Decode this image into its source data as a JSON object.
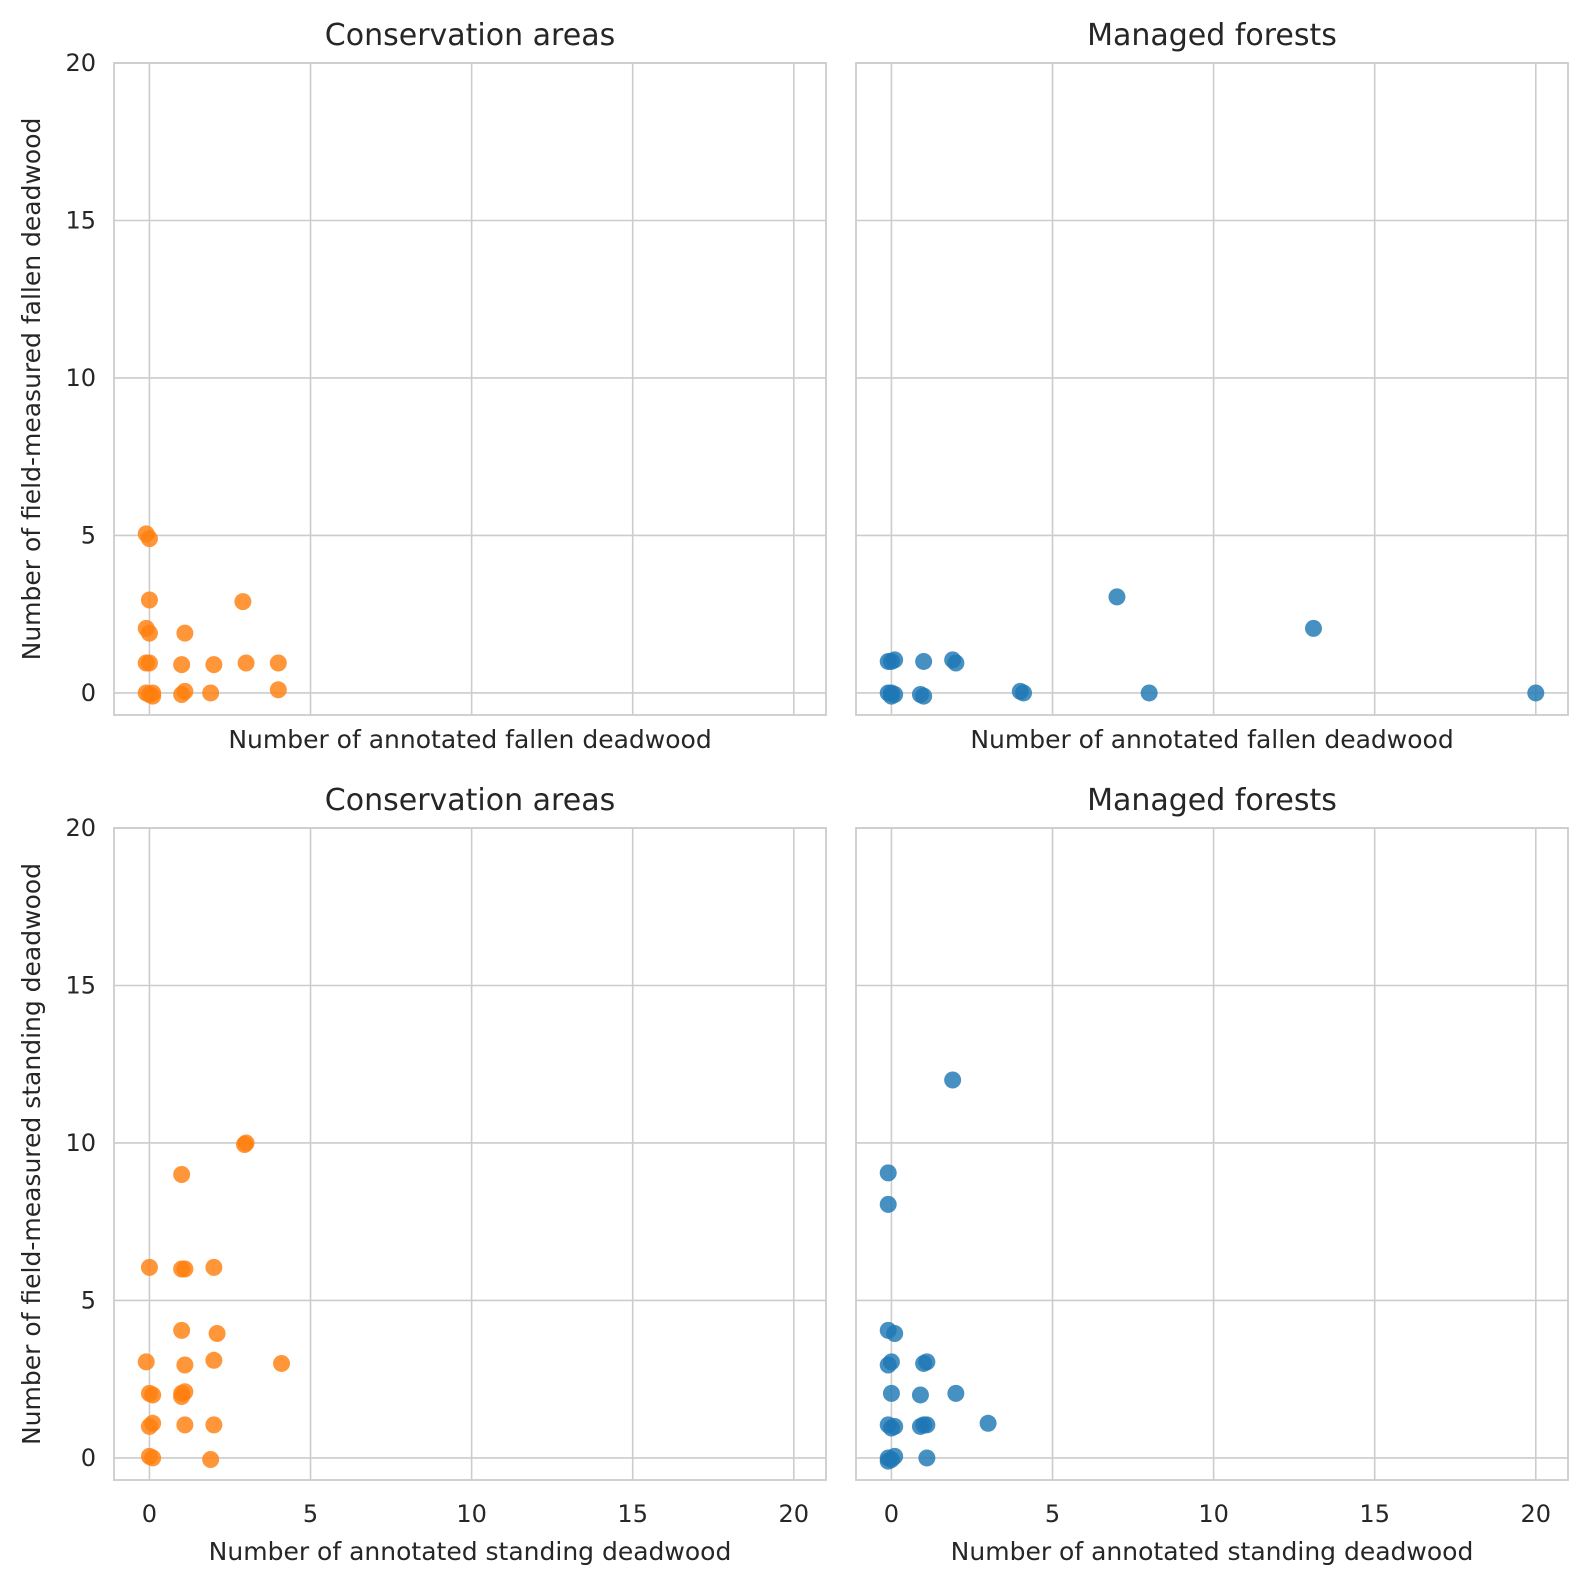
{
  "colors": {
    "conservation": "#ff7f0e",
    "managed": "#1f77b4"
  },
  "chart_data": [
    {
      "type": "scatter",
      "title": "Conservation areas",
      "xlabel": "Number of annotated fallen deadwood",
      "ylabel": "Number of field-measured fallen deadwood",
      "xlim": [
        -1.1,
        21
      ],
      "ylim": [
        -0.7,
        20
      ],
      "xticks": [
        0,
        5,
        10,
        15,
        20
      ],
      "yticks": [
        0,
        5,
        10,
        15,
        20
      ],
      "xtick_labels_visible": false,
      "ytick_labels_visible": true,
      "grid": true,
      "color": "#ff7f0e",
      "points": [
        [
          -0.1,
          5.05
        ],
        [
          0,
          4.9
        ],
        [
          0,
          2.95
        ],
        [
          -0.1,
          2.05
        ],
        [
          0,
          1.9
        ],
        [
          -0.1,
          0.95
        ],
        [
          0,
          0.95
        ],
        [
          -0.1,
          0
        ],
        [
          0,
          -0.05
        ],
        [
          0.1,
          0
        ],
        [
          0.1,
          -0.1
        ],
        [
          1.1,
          1.9
        ],
        [
          1,
          0.9
        ],
        [
          1,
          -0.05
        ],
        [
          1.1,
          0.05
        ],
        [
          1.9,
          0
        ],
        [
          2,
          0.9
        ],
        [
          2.9,
          2.9
        ],
        [
          3,
          0.95
        ],
        [
          4,
          0.95
        ],
        [
          4,
          0.1
        ]
      ]
    },
    {
      "type": "scatter",
      "title": "Managed forests",
      "xlabel": "Number of annotated fallen deadwood",
      "ylabel": "",
      "xlim": [
        -1.1,
        21
      ],
      "ylim": [
        -0.7,
        20
      ],
      "xticks": [
        0,
        5,
        10,
        15,
        20
      ],
      "yticks": [
        0,
        5,
        10,
        15,
        20
      ],
      "xtick_labels_visible": false,
      "ytick_labels_visible": false,
      "grid": true,
      "color": "#1f77b4",
      "points": [
        [
          -0.1,
          1
        ],
        [
          0,
          1
        ],
        [
          0.1,
          1.05
        ],
        [
          -0.1,
          0
        ],
        [
          0,
          0
        ],
        [
          0.1,
          -0.05
        ],
        [
          0,
          -0.1
        ],
        [
          1,
          1
        ],
        [
          0.9,
          -0.05
        ],
        [
          1,
          -0.1
        ],
        [
          1.9,
          1.05
        ],
        [
          2,
          0.95
        ],
        [
          4,
          0.05
        ],
        [
          4.1,
          0
        ],
        [
          7,
          3.05
        ],
        [
          8,
          0
        ],
        [
          13.1,
          2.05
        ],
        [
          20,
          0
        ]
      ]
    },
    {
      "type": "scatter",
      "title": "Conservation areas",
      "xlabel": "Number of annotated standing deadwood",
      "ylabel": "Number of field-measured standing deadwood",
      "xlim": [
        -1.1,
        21
      ],
      "ylim": [
        -0.7,
        20
      ],
      "xticks": [
        0,
        5,
        10,
        15,
        20
      ],
      "yticks": [
        0,
        5,
        10,
        15,
        20
      ],
      "xtick_labels_visible": true,
      "ytick_labels_visible": true,
      "grid": true,
      "color": "#ff7f0e",
      "points": [
        [
          0,
          6.05
        ],
        [
          -0.1,
          3.05
        ],
        [
          0,
          2.05
        ],
        [
          0.1,
          2
        ],
        [
          0,
          1
        ],
        [
          0.1,
          1.1
        ],
        [
          0,
          0.05
        ],
        [
          0.1,
          0
        ],
        [
          1,
          9
        ],
        [
          1.1,
          6
        ],
        [
          1,
          6
        ],
        [
          1,
          4.05
        ],
        [
          1.1,
          2.95
        ],
        [
          1,
          2.05
        ],
        [
          1.1,
          2.1
        ],
        [
          1,
          1.95
        ],
        [
          1.1,
          1.05
        ],
        [
          2,
          6.05
        ],
        [
          2.1,
          3.95
        ],
        [
          2,
          3.1
        ],
        [
          2,
          1.05
        ],
        [
          1.9,
          -0.05
        ],
        [
          3,
          10
        ],
        [
          2.95,
          9.95
        ],
        [
          4.1,
          3
        ]
      ]
    },
    {
      "type": "scatter",
      "title": "Managed forests",
      "xlabel": "Number of annotated standing deadwood",
      "ylabel": "",
      "xlim": [
        -1.1,
        21
      ],
      "ylim": [
        -0.7,
        20
      ],
      "xticks": [
        0,
        5,
        10,
        15,
        20
      ],
      "yticks": [
        0,
        5,
        10,
        15,
        20
      ],
      "xtick_labels_visible": true,
      "ytick_labels_visible": false,
      "grid": true,
      "color": "#1f77b4",
      "points": [
        [
          -0.1,
          9.05
        ],
        [
          -0.1,
          8.05
        ],
        [
          -0.1,
          4.05
        ],
        [
          0.1,
          3.95
        ],
        [
          0,
          3.05
        ],
        [
          -0.1,
          2.95
        ],
        [
          0,
          2.05
        ],
        [
          -0.1,
          1.05
        ],
        [
          0,
          0.95
        ],
        [
          0.1,
          1
        ],
        [
          -0.1,
          0
        ],
        [
          0,
          -0.05
        ],
        [
          0.1,
          0.05
        ],
        [
          -0.1,
          -0.1
        ],
        [
          1,
          3
        ],
        [
          1.1,
          3.05
        ],
        [
          0.9,
          2
        ],
        [
          1,
          1.05
        ],
        [
          1.1,
          1.05
        ],
        [
          0.9,
          1
        ],
        [
          1.1,
          0
        ],
        [
          1.9,
          12
        ],
        [
          2,
          2.05
        ],
        [
          3,
          1.1
        ]
      ]
    }
  ]
}
